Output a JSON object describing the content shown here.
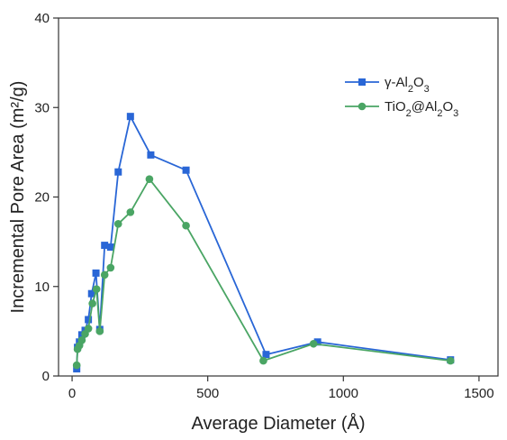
{
  "chart_data": {
    "type": "line",
    "xlabel": "Average Diameter (Å)",
    "ylabel": "Incremental Pore Area (m²/g)",
    "xlim": [
      -50,
      1570
    ],
    "ylim": [
      0,
      40
    ],
    "x_ticks": [
      0,
      500,
      1000,
      1500
    ],
    "y_ticks": [
      0,
      10,
      20,
      30,
      40
    ],
    "x_tick_labels": [
      "0",
      "500",
      "1000",
      "1500"
    ],
    "y_tick_labels": [
      "0",
      "10",
      "20",
      "30",
      "40"
    ],
    "grid": false,
    "legend_position": "top-right",
    "series": [
      {
        "name": "γ-Al2O3",
        "legend_parts": [
          [
            "γ-Al",
            ""
          ],
          [
            "2",
            "sub"
          ],
          [
            "O",
            ""
          ],
          [
            "3",
            "sub"
          ]
        ],
        "color": "#2966d6",
        "marker": "square",
        "x": [
          17,
          20,
          27,
          36,
          48,
          60,
          72,
          88,
          102,
          120,
          142,
          170,
          215,
          290,
          420,
          715,
          905,
          1395
        ],
        "y": [
          0.8,
          3.2,
          3.8,
          4.6,
          5.1,
          6.3,
          9.2,
          11.5,
          5.2,
          14.6,
          14.4,
          22.8,
          29.0,
          24.7,
          23.0,
          2.4,
          3.8,
          1.8
        ]
      },
      {
        "name": "TiO2@Al2O3",
        "legend_parts": [
          [
            "TiO",
            ""
          ],
          [
            "2",
            "sub"
          ],
          [
            "@Al",
            ""
          ],
          [
            "2",
            "sub"
          ],
          [
            "O",
            ""
          ],
          [
            "3",
            "sub"
          ]
        ],
        "color": "#4aa564",
        "marker": "circle",
        "x": [
          17,
          20,
          27,
          36,
          48,
          60,
          75,
          90,
          102,
          120,
          142,
          170,
          215,
          285,
          420,
          705,
          890,
          1395
        ],
        "y": [
          1.2,
          3.0,
          3.4,
          4.0,
          4.7,
          5.3,
          8.1,
          9.7,
          5.0,
          11.3,
          12.1,
          17.0,
          18.3,
          22.0,
          16.8,
          1.7,
          3.6,
          1.7
        ]
      }
    ]
  }
}
